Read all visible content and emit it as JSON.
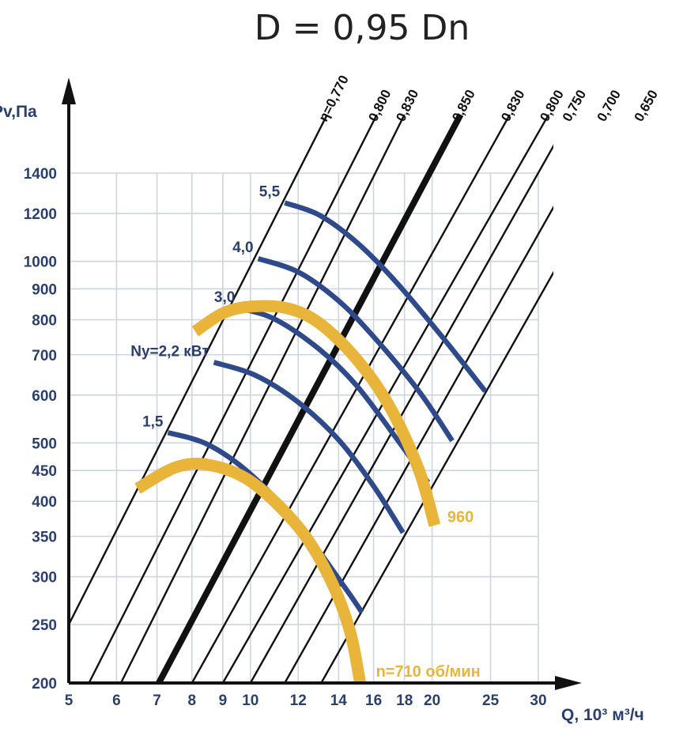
{
  "chart_data": {
    "type": "line",
    "title": "D = 0,95 Dn",
    "xlabel": "Q, 10³ м³/ч",
    "ylabel": "Pv,Па",
    "x_scale": "log",
    "y_scale": "log",
    "xlim": [
      5,
      31
    ],
    "ylim": [
      200,
      1500
    ],
    "x_ticks": [
      5,
      6,
      7,
      8,
      9,
      10,
      12,
      14,
      16,
      18,
      20,
      25,
      30
    ],
    "x_tick_labels": [
      "5",
      "6",
      "7",
      "8",
      "9",
      "10",
      "12",
      "14",
      "16",
      "18",
      "20",
      "25",
      "30"
    ],
    "y_ticks": [
      200,
      250,
      300,
      350,
      400,
      450,
      500,
      600,
      700,
      800,
      900,
      1000,
      1200,
      1400
    ],
    "y_tick_labels": [
      "200",
      "250",
      "300",
      "350",
      "400",
      "450",
      "500",
      "600",
      "700",
      "800",
      "900",
      "1000",
      "1200",
      "1400"
    ],
    "grid": true,
    "efficiency_lines": [
      {
        "label": "η=0,770",
        "value": 0.77,
        "bold": false,
        "points": [
          [
            5,
            250
          ],
          [
            13.4,
            1750
          ]
        ]
      },
      {
        "label": "0,800",
        "value": 0.8,
        "bold": false,
        "points": [
          [
            5.4,
            200
          ],
          [
            16.2,
            1750
          ]
        ]
      },
      {
        "label": "0,830",
        "value": 0.83,
        "bold": false,
        "points": [
          [
            6.1,
            200
          ],
          [
            18.0,
            1750
          ]
        ]
      },
      {
        "label": "0,850",
        "value": 0.85,
        "bold": true,
        "points": [
          [
            7.05,
            200
          ],
          [
            22.3,
            1750
          ]
        ]
      },
      {
        "label": "0,830",
        "value": 0.83,
        "bold": false,
        "points": [
          [
            8.0,
            200
          ],
          [
            26.9,
            1750
          ]
        ]
      },
      {
        "label": "0,800",
        "value": 0.8,
        "bold": false,
        "points": [
          [
            9.0,
            200
          ],
          [
            31.2,
            1750
          ]
        ]
      },
      {
        "label": "0,750",
        "value": 0.75,
        "bold": false,
        "points": [
          [
            10.0,
            200
          ],
          [
            34.0,
            1750
          ]
        ]
      },
      {
        "label": "0,700",
        "value": 0.7,
        "bold": false,
        "points": [
          [
            11.4,
            200
          ],
          [
            38.8,
            1750
          ]
        ]
      },
      {
        "label": "0,650",
        "value": 0.65,
        "bold": false,
        "points": [
          [
            13.1,
            200
          ],
          [
            44.7,
            1750
          ]
        ]
      }
    ],
    "power_curves": [
      {
        "label": "1,5",
        "unit": "",
        "points": [
          [
            7.3,
            520
          ],
          [
            8.5,
            497
          ],
          [
            10.0,
            444
          ],
          [
            12.0,
            367
          ],
          [
            14.2,
            292
          ],
          [
            15.3,
            262
          ]
        ]
      },
      {
        "label": "Ny=2,2 кВт",
        "points": [
          [
            8.7,
            680
          ],
          [
            10.2,
            647
          ],
          [
            12.0,
            584
          ],
          [
            14.0,
            506
          ],
          [
            16.0,
            424
          ],
          [
            17.9,
            355
          ]
        ]
      },
      {
        "label": "3,0",
        "points": [
          [
            9.6,
            836
          ],
          [
            11.0,
            801
          ],
          [
            13.0,
            715
          ],
          [
            15.0,
            622
          ],
          [
            17.5,
            507
          ],
          [
            19.7,
            430
          ]
        ]
      },
      {
        "label": "4,0",
        "points": [
          [
            10.3,
            1010
          ],
          [
            12.0,
            960
          ],
          [
            14.0,
            860
          ],
          [
            16.0,
            750
          ],
          [
            19.0,
            610
          ],
          [
            21.6,
            504
          ]
        ]
      },
      {
        "label": "5,5",
        "points": [
          [
            11.4,
            1250
          ],
          [
            13.0,
            1193
          ],
          [
            15.0,
            1075
          ],
          [
            17.5,
            920
          ],
          [
            21.0,
            740
          ],
          [
            24.5,
            609
          ]
        ]
      }
    ],
    "speed_curves": [
      {
        "label": "n=710 об/мин",
        "points": [
          [
            6.5,
            420
          ],
          [
            7.5,
            455
          ],
          [
            8.5,
            460
          ],
          [
            10.0,
            432
          ],
          [
            12.0,
            363
          ],
          [
            13.5,
            300
          ],
          [
            14.6,
            245
          ],
          [
            15.2,
            200
          ]
        ]
      },
      {
        "label": "960",
        "points": [
          [
            8.1,
            765
          ],
          [
            9.0,
            820
          ],
          [
            10.0,
            841
          ],
          [
            11.5,
            836
          ],
          [
            13.0,
            790
          ],
          [
            15.0,
            688
          ],
          [
            17.0,
            575
          ],
          [
            19.0,
            452
          ],
          [
            20.2,
            365
          ]
        ]
      }
    ]
  }
}
